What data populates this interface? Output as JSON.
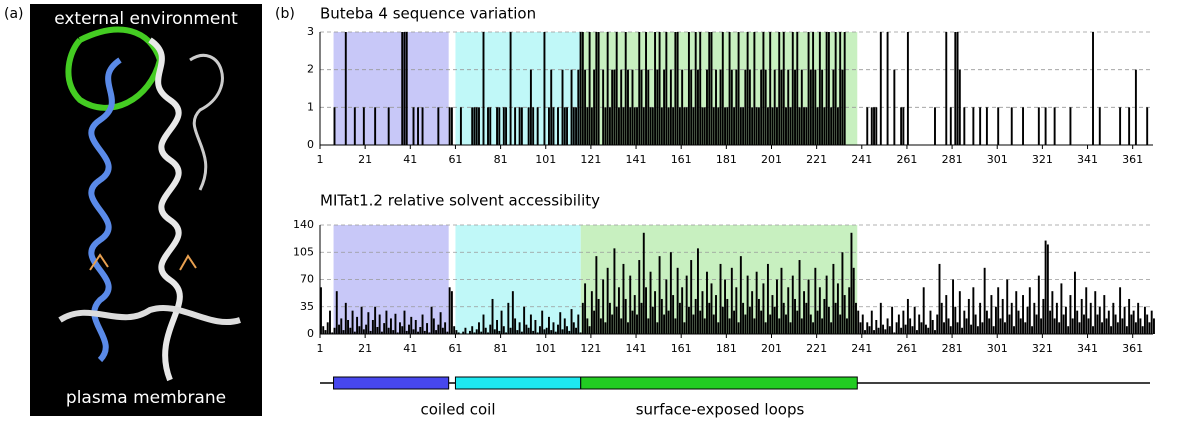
{
  "panel_a": {
    "label": "(a)",
    "top_label": "external environment",
    "bottom_label": "plasma membrane"
  },
  "panel_b_label": "(b)",
  "chart_data": [
    {
      "type": "bar",
      "title": "Buteba 4  sequence variation",
      "color": "#000000",
      "grid": true,
      "xlim": [
        1,
        370
      ],
      "xticks": [
        1,
        21,
        41,
        61,
        81,
        101,
        121,
        141,
        161,
        181,
        201,
        221,
        241,
        261,
        281,
        301,
        321,
        341,
        361
      ],
      "ylim": [
        0,
        3
      ],
      "yticks": [
        0,
        1,
        2,
        3
      ],
      "regions": [
        {
          "start": 7,
          "end": 58,
          "color": "#c8c8f8"
        },
        {
          "start": 61,
          "end": 116.5,
          "color": "#c0f8f8"
        },
        {
          "start": 116.5,
          "end": 239,
          "color": "#c8f0c0"
        }
      ],
      "values": [
        0,
        0,
        0,
        0,
        0,
        0,
        1,
        0,
        0,
        0,
        0,
        3,
        0,
        0,
        0,
        1,
        0,
        0,
        0,
        1,
        0,
        0,
        0,
        0,
        1,
        0,
        0,
        0,
        0,
        0,
        1,
        0,
        0,
        0,
        0,
        0,
        3,
        3,
        3,
        0,
        0,
        1,
        0,
        1,
        0,
        1,
        0,
        0,
        0,
        0,
        0,
        0,
        1,
        0,
        0,
        0,
        0,
        1,
        1,
        0,
        0,
        0,
        1,
        0,
        0,
        0,
        0,
        1,
        1,
        1,
        1,
        0,
        3,
        0,
        1,
        1,
        0,
        0,
        1,
        1,
        0,
        1,
        1,
        0,
        3,
        0,
        1,
        0,
        1,
        1,
        0,
        0,
        1,
        2,
        1,
        0,
        1,
        0,
        0,
        3,
        0,
        1,
        2,
        1,
        0,
        1,
        0,
        2,
        1,
        1,
        0,
        2,
        1,
        1,
        2,
        3,
        3,
        2,
        1,
        3,
        1,
        2,
        3,
        3,
        0,
        2,
        1,
        3,
        1,
        2,
        2,
        3,
        1,
        2,
        1,
        3,
        2,
        1,
        2,
        1,
        1,
        3,
        2,
        1,
        3,
        2,
        1,
        1,
        3,
        2,
        3,
        1,
        2,
        3,
        1,
        2,
        1,
        3,
        3,
        1,
        2,
        1,
        1,
        3,
        2,
        1,
        3,
        2,
        3,
        1,
        1,
        2,
        3,
        3,
        1,
        2,
        1,
        2,
        3,
        1,
        1,
        3,
        2,
        1,
        2,
        3,
        1,
        1,
        2,
        3,
        2,
        1,
        3,
        1,
        1,
        2,
        3,
        2,
        1,
        3,
        1,
        2,
        1,
        3,
        2,
        3,
        1,
        2,
        1,
        3,
        2,
        3,
        1,
        2,
        1,
        1,
        3,
        2,
        3,
        2,
        1,
        3,
        2,
        1,
        3,
        3,
        1,
        2,
        3,
        1,
        3,
        2,
        3,
        0,
        0,
        0,
        0,
        0,
        0,
        0,
        0,
        0,
        1,
        0,
        1,
        1,
        1,
        0,
        3,
        0,
        0,
        3,
        0,
        0,
        2,
        0,
        0,
        1,
        1,
        0,
        3,
        0,
        0,
        0,
        0,
        0,
        0,
        0,
        0,
        0,
        0,
        0,
        1,
        0,
        0,
        0,
        0,
        3,
        0,
        1,
        0,
        3,
        3,
        2,
        0,
        1,
        0,
        0,
        0,
        1,
        0,
        0,
        1,
        0,
        0,
        1,
        0,
        0,
        0,
        0,
        1,
        0,
        0,
        0,
        0,
        0,
        1,
        0,
        0,
        0,
        0,
        1,
        0,
        0,
        0,
        0,
        0,
        0,
        1,
        0,
        0,
        1,
        0,
        0,
        0,
        1,
        0,
        0,
        0,
        0,
        0,
        0,
        1,
        0,
        0,
        0,
        0,
        0,
        0,
        0,
        0,
        0,
        3,
        0,
        0,
        1,
        0,
        0,
        0,
        0,
        0,
        0,
        0,
        0,
        1,
        0,
        0,
        0,
        1,
        0,
        0,
        2,
        0,
        0,
        0,
        0,
        1,
        0,
        0,
        0
      ]
    },
    {
      "type": "bar",
      "title": "MITat1.2 relative solvent accessibility",
      "color": "#000000",
      "grid": true,
      "xlim": [
        1,
        370
      ],
      "xticks": [
        1,
        21,
        41,
        61,
        81,
        101,
        121,
        141,
        161,
        181,
        201,
        221,
        241,
        261,
        281,
        301,
        321,
        341,
        361
      ],
      "ylim": [
        0,
        140
      ],
      "yticks": [
        0,
        35,
        70,
        105,
        140
      ],
      "regions": [
        {
          "start": 7,
          "end": 58,
          "color": "#c8c8f8"
        },
        {
          "start": 61,
          "end": 116.5,
          "color": "#c0f8f8"
        },
        {
          "start": 116.5,
          "end": 239,
          "color": "#c8f0c0"
        }
      ],
      "values": [
        60,
        10,
        5,
        15,
        30,
        2,
        8,
        55,
        12,
        20,
        5,
        40,
        18,
        8,
        30,
        3,
        22,
        10,
        35,
        6,
        12,
        28,
        4,
        18,
        35,
        9,
        25,
        3,
        14,
        30,
        8,
        20,
        5,
        26,
        2,
        15,
        10,
        30,
        4,
        12,
        22,
        6,
        18,
        3,
        9,
        25,
        4,
        14,
        2,
        35,
        20,
        5,
        12,
        28,
        8,
        15,
        3,
        60,
        55,
        10,
        5,
        2,
        0,
        3,
        8,
        0,
        4,
        10,
        2,
        6,
        15,
        3,
        25,
        8,
        2,
        12,
        45,
        6,
        18,
        4,
        30,
        10,
        2,
        40,
        8,
        55,
        20,
        5,
        15,
        3,
        35,
        12,
        8,
        25,
        4,
        18,
        2,
        10,
        30,
        6,
        8,
        22,
        5,
        15,
        3,
        12,
        28,
        6,
        20,
        10,
        4,
        32,
        15,
        8,
        25,
        2,
        40,
        65,
        20,
        10,
        55,
        30,
        100,
        45,
        20,
        70,
        15,
        85,
        40,
        25,
        110,
        35,
        60,
        20,
        90,
        45,
        15,
        75,
        30,
        50,
        25,
        95,
        40,
        130,
        60,
        20,
        80,
        35,
        55,
        15,
        100,
        45,
        25,
        70,
        30,
        105,
        50,
        20,
        85,
        40,
        60,
        15,
        75,
        35,
        95,
        25,
        45,
        110,
        30,
        55,
        20,
        80,
        40,
        65,
        25,
        50,
        15,
        90,
        35,
        70,
        45,
        20,
        85,
        30,
        60,
        15,
        100,
        40,
        25,
        75,
        35,
        55,
        20,
        80,
        45,
        30,
        65,
        15,
        90,
        25,
        50,
        35,
        70,
        20,
        85,
        40,
        25,
        60,
        15,
        75,
        45,
        30,
        95,
        20,
        55,
        40,
        70,
        25,
        15,
        85,
        30,
        60,
        20,
        45,
        75,
        35,
        15,
        90,
        40,
        65,
        25,
        105,
        50,
        20,
        60,
        130,
        85,
        40,
        30,
        15,
        25,
        5,
        15,
        10,
        30,
        5,
        18,
        8,
        40,
        12,
        6,
        20,
        10,
        35,
        2,
        15,
        25,
        8,
        30,
        12,
        45,
        20,
        10,
        35,
        5,
        25,
        15,
        60,
        12,
        8,
        30,
        18,
        5,
        25,
        90,
        40,
        15,
        50,
        20,
        10,
        70,
        35,
        15,
        55,
        8,
        30,
        20,
        45,
        12,
        60,
        25,
        10,
        40,
        15,
        85,
        30,
        20,
        50,
        10,
        35,
        60,
        20,
        45,
        15,
        70,
        25,
        40,
        10,
        55,
        30,
        20,
        50,
        15,
        35,
        60,
        10,
        40,
        25,
        75,
        20,
        45,
        120,
        115,
        30,
        55,
        20,
        40,
        15,
        65,
        25,
        35,
        10,
        50,
        20,
        80,
        30,
        15,
        45,
        25,
        60,
        20,
        40,
        10,
        55,
        25,
        35,
        15,
        50,
        20,
        30,
        10,
        40,
        25,
        15,
        60,
        20,
        35,
        10,
        45,
        25,
        30,
        15,
        40,
        20,
        10,
        35,
        25,
        15,
        30,
        20
      ]
    }
  ],
  "domain_map": {
    "segments": [
      {
        "start": 7,
        "end": 58,
        "color": "#4747ee"
      },
      {
        "start": 61,
        "end": 116.5,
        "color": "#1ee8f0"
      },
      {
        "start": 116.5,
        "end": 239,
        "color": "#22cc22"
      }
    ],
    "labels": [
      "coiled coil",
      "surface-exposed loops"
    ]
  }
}
